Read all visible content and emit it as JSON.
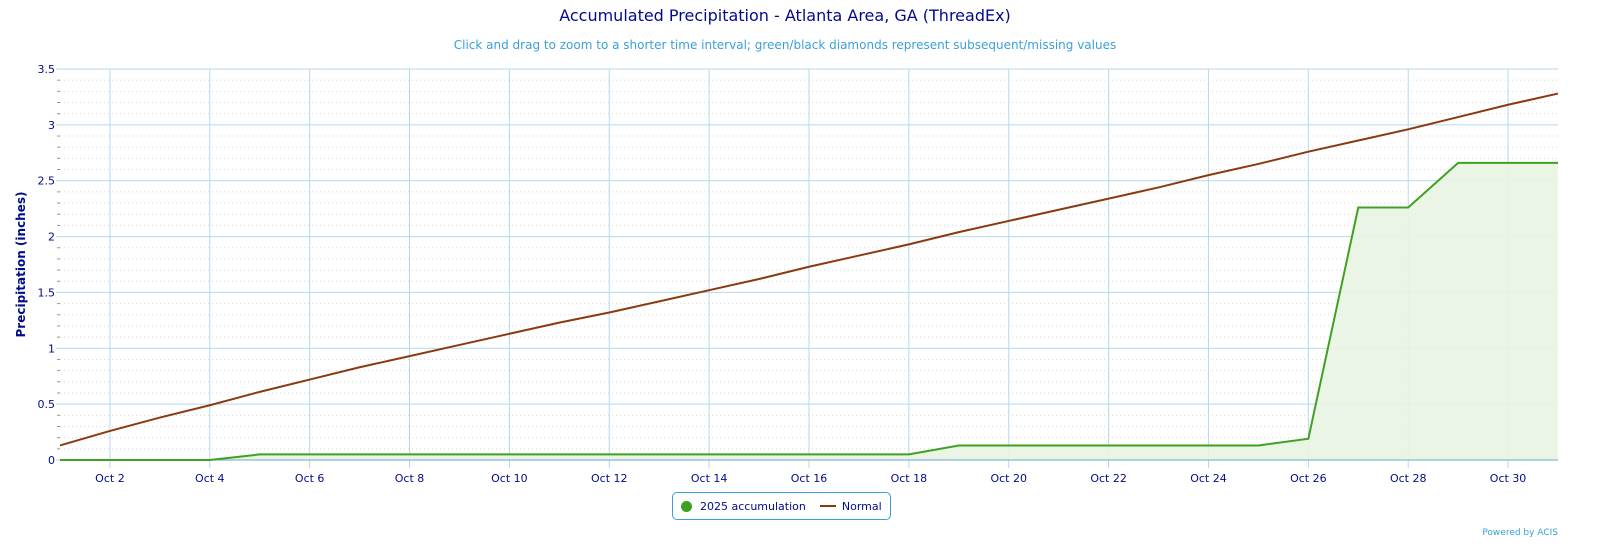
{
  "chart_data": {
    "type": "line",
    "title": "Accumulated Precipitation - Atlanta Area, GA (ThreadEx)",
    "subtitle": "Click and drag to zoom to a shorter time interval; green/black diamonds represent subsequent/missing values",
    "xlabel": "",
    "ylabel": "Precipitation (inches)",
    "ylim": [
      0,
      3.5
    ],
    "yticks": [
      "0",
      "0.5",
      "1",
      "1.5",
      "2",
      "2.5",
      "3",
      "3.5"
    ],
    "xlim": [
      1,
      31
    ],
    "xticks": [
      {
        "day": 2,
        "label": "Oct 2"
      },
      {
        "day": 4,
        "label": "Oct 4"
      },
      {
        "day": 6,
        "label": "Oct 6"
      },
      {
        "day": 8,
        "label": "Oct 8"
      },
      {
        "day": 10,
        "label": "Oct 10"
      },
      {
        "day": 12,
        "label": "Oct 12"
      },
      {
        "day": 14,
        "label": "Oct 14"
      },
      {
        "day": 16,
        "label": "Oct 16"
      },
      {
        "day": 18,
        "label": "Oct 18"
      },
      {
        "day": 20,
        "label": "Oct 20"
      },
      {
        "day": 22,
        "label": "Oct 22"
      },
      {
        "day": 24,
        "label": "Oct 24"
      },
      {
        "day": 26,
        "label": "Oct 26"
      },
      {
        "day": 28,
        "label": "Oct 28"
      },
      {
        "day": 30,
        "label": "Oct 30"
      }
    ],
    "x": [
      1,
      2,
      3,
      4,
      5,
      6,
      7,
      8,
      9,
      10,
      11,
      12,
      13,
      14,
      15,
      16,
      17,
      18,
      19,
      20,
      21,
      22,
      23,
      24,
      25,
      26,
      27,
      28,
      29,
      30,
      31
    ],
    "series": [
      {
        "name": "2025 accumulation",
        "color": "#3fa121",
        "fill": "#e9f4e2",
        "values": [
          0,
          0,
          0,
          0,
          0.05,
          0.05,
          0.05,
          0.05,
          0.05,
          0.05,
          0.05,
          0.05,
          0.05,
          0.05,
          0.05,
          0.05,
          0.05,
          0.05,
          0.13,
          0.13,
          0.13,
          0.13,
          0.13,
          0.13,
          0.13,
          0.19,
          2.26,
          2.26,
          2.66,
          2.66,
          2.66
        ]
      },
      {
        "name": "Normal",
        "color": "#8b3a0f",
        "values": [
          0.13,
          0.26,
          0.38,
          0.49,
          0.61,
          0.72,
          0.83,
          0.93,
          1.03,
          1.13,
          1.23,
          1.32,
          1.42,
          1.52,
          1.62,
          1.73,
          1.83,
          1.93,
          2.04,
          2.14,
          2.24,
          2.34,
          2.44,
          2.55,
          2.65,
          2.76,
          2.86,
          2.96,
          3.07,
          3.18,
          3.28
        ]
      }
    ],
    "legend": "bottom-center",
    "grid": true
  },
  "credit": "Powered by ACIS"
}
